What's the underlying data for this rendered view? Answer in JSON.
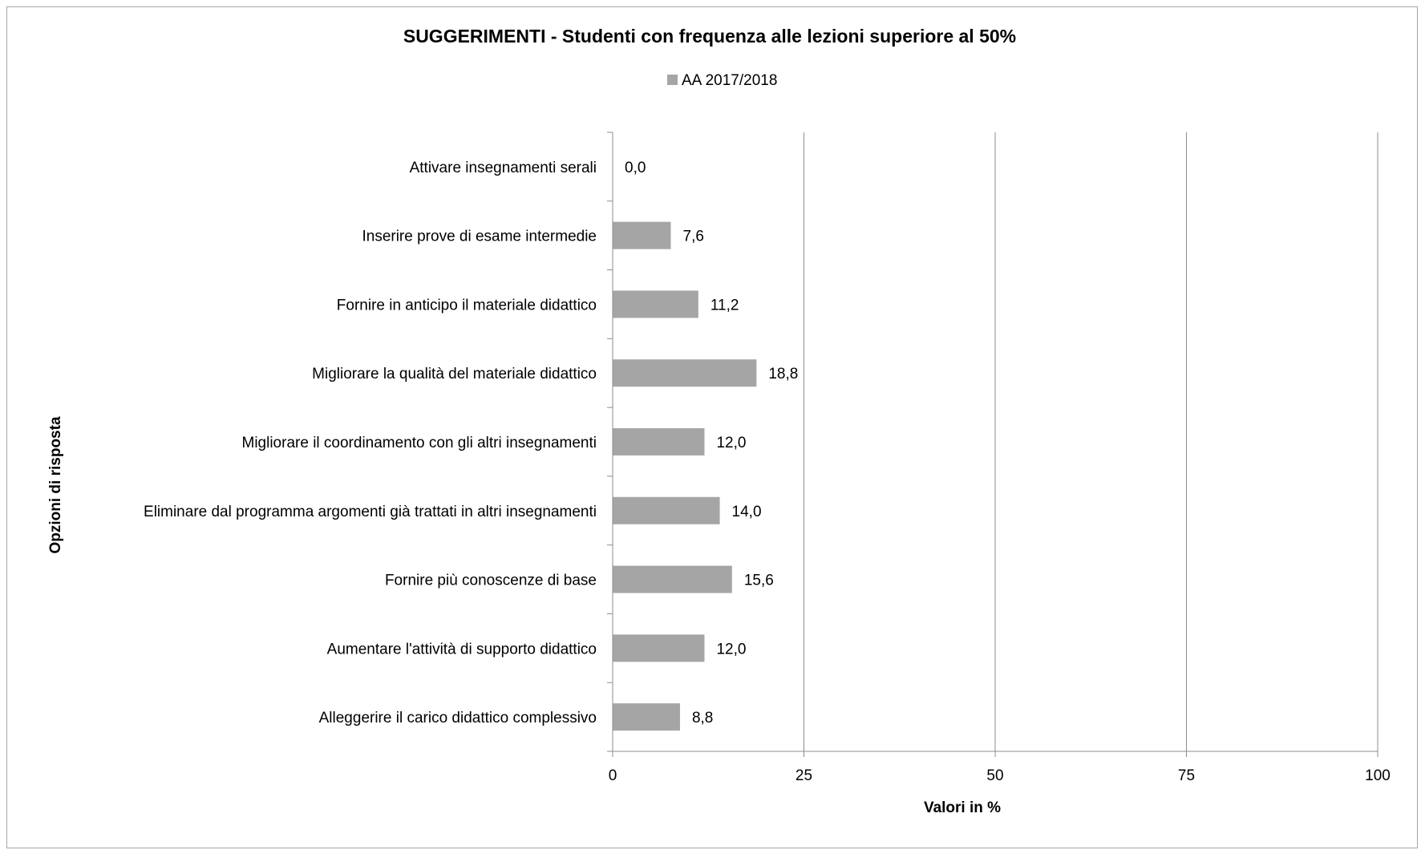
{
  "chart_data": {
    "type": "bar",
    "orientation": "horizontal",
    "title": "SUGGERIMENTI  - Studenti con frequenza alle lezioni superiore al 50%",
    "xlabel": "Valori in %",
    "ylabel": "Opzioni di risposta",
    "xlim": [
      0,
      100
    ],
    "xticks": [
      "0",
      "25",
      "50",
      "75",
      "100"
    ],
    "grid": "vertical",
    "legend_position": "top",
    "bar_color": "#a5a5a5",
    "categories": [
      "Attivare insegnamenti serali",
      "Inserire prove di esame intermedie",
      "Fornire in anticipo il materiale didattico",
      "Migliorare la qualità del materiale didattico",
      "Migliorare il coordinamento con gli altri insegnamenti",
      "Eliminare dal programma argomenti già trattati in altri insegnamenti",
      "Fornire più conoscenze di base",
      "Aumentare l'attività di supporto didattico",
      "Alleggerire il carico didattico complessivo"
    ],
    "series": [
      {
        "name": "AA 2017/2018",
        "values": [
          0.0,
          7.6,
          11.2,
          18.8,
          12.0,
          14.0,
          15.6,
          12.0,
          8.8
        ],
        "value_labels": [
          "0,0",
          "7,6",
          "11,2",
          "18,8",
          "12,0",
          "14,0",
          "15,6",
          "12,0",
          "8,8"
        ]
      }
    ]
  }
}
